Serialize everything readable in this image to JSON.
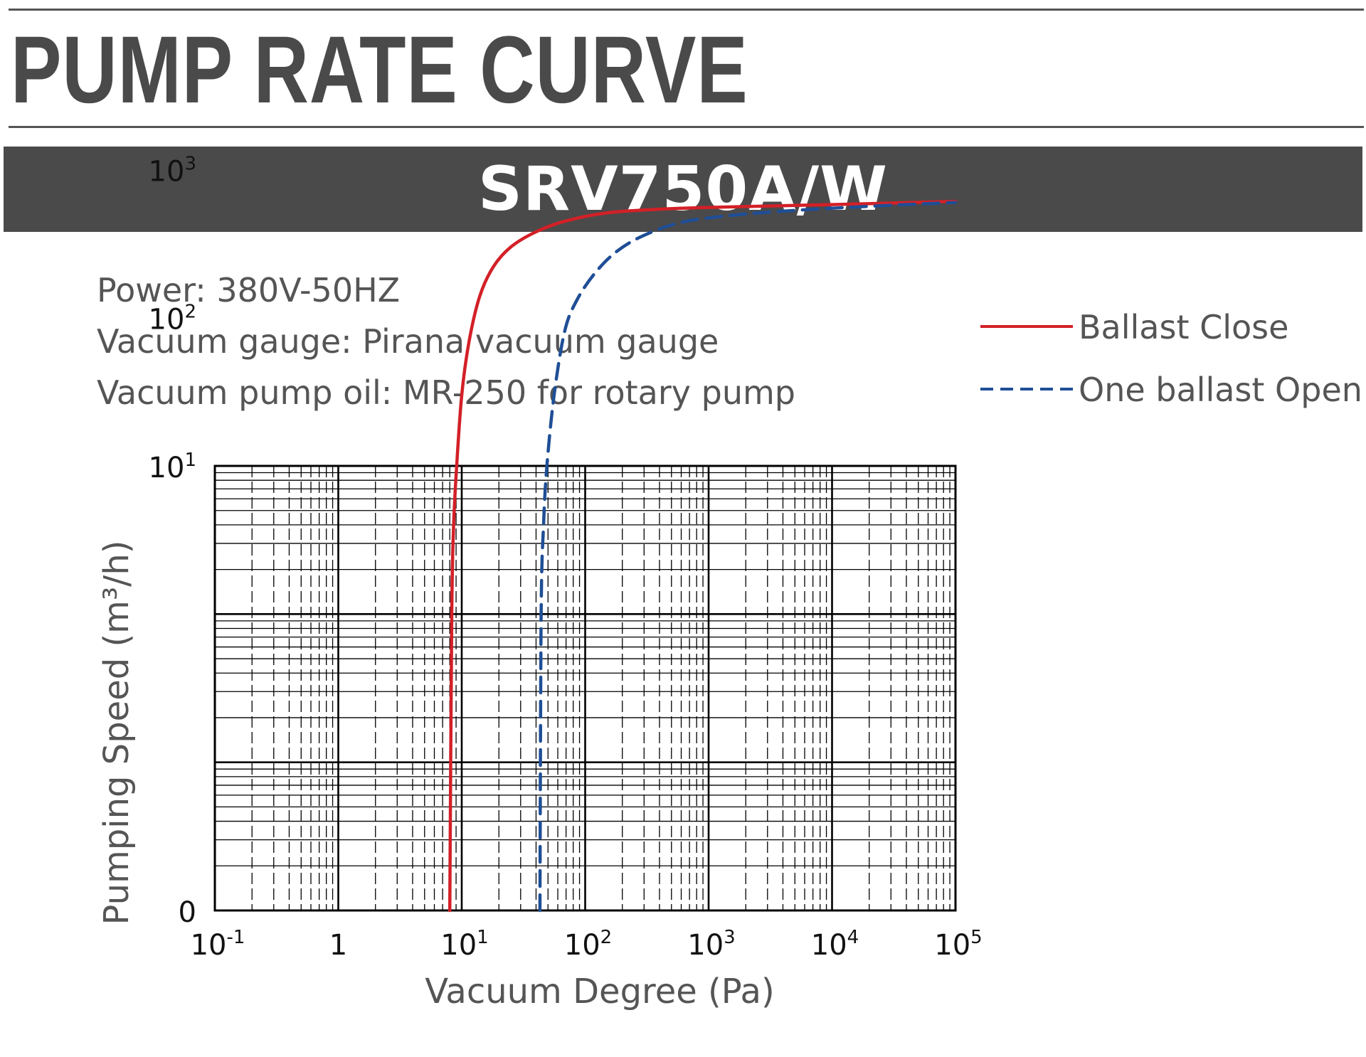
{
  "header": {
    "title": "PUMP RATE CURVE",
    "model": "SRV750A/W"
  },
  "specs": [
    "Power: 380V-50HZ",
    "Vacuum gauge: Pirana vacuum gauge",
    "Vacuum pump oil: MR-250 for rotary pump"
  ],
  "colors": {
    "text": "#4a4a4a",
    "banner": "#4b4a4a",
    "ballast_close": "#d32027",
    "ballast_open": "#1f4e96",
    "grid": "#000000"
  },
  "chart_data": {
    "type": "line",
    "xlabel": "Vacuum Degree (Pa)",
    "ylabel": "Pumping Speed (m³/h)",
    "x_scale": "log",
    "y_scale": "log",
    "xlim": [
      0.1,
      100000
    ],
    "ylim": [
      0,
      1000
    ],
    "grid": true,
    "legend_position": "top-right",
    "x_ticks": [
      {
        "value": 0.1,
        "base": "10",
        "exp": "-1"
      },
      {
        "value": 1,
        "base": "1",
        "exp": ""
      },
      {
        "value": 10,
        "base": "10",
        "exp": "1"
      },
      {
        "value": 100,
        "base": "10",
        "exp": "2"
      },
      {
        "value": 1000,
        "base": "10",
        "exp": "3"
      },
      {
        "value": 10000,
        "base": "10",
        "exp": "4"
      },
      {
        "value": 100000,
        "base": "10",
        "exp": "5"
      }
    ],
    "y_ticks": [
      {
        "value": 0,
        "base": "0",
        "exp": ""
      },
      {
        "value": 10,
        "base": "10",
        "exp": "1"
      },
      {
        "value": 100,
        "base": "10",
        "exp": "2"
      },
      {
        "value": 1000,
        "base": "10",
        "exp": "3"
      }
    ],
    "series": [
      {
        "name": "Ballast Close",
        "style": "solid",
        "color": "#d32027",
        "points": [
          [
            8.0,
            0
          ],
          [
            8.3,
            1
          ],
          [
            8.6,
            4
          ],
          [
            9.1,
            10
          ],
          [
            10,
            30
          ],
          [
            11.5,
            70
          ],
          [
            14,
            140
          ],
          [
            18,
            220
          ],
          [
            25,
            300
          ],
          [
            40,
            380
          ],
          [
            70,
            450
          ],
          [
            150,
            510
          ],
          [
            400,
            540
          ],
          [
            1000,
            555
          ],
          [
            10000,
            580
          ],
          [
            100000,
            610
          ]
        ]
      },
      {
        "name": "One ballast Open",
        "style": "dashed",
        "color": "#1f4e96",
        "points": [
          [
            43,
            0
          ],
          [
            44,
            1
          ],
          [
            46,
            4
          ],
          [
            49,
            10
          ],
          [
            56,
            30
          ],
          [
            68,
            80
          ],
          [
            85,
            130
          ],
          [
            120,
            200
          ],
          [
            180,
            280
          ],
          [
            300,
            360
          ],
          [
            600,
            440
          ],
          [
            1500,
            490
          ],
          [
            5000,
            530
          ],
          [
            20000,
            565
          ],
          [
            100000,
            600
          ]
        ]
      }
    ]
  }
}
